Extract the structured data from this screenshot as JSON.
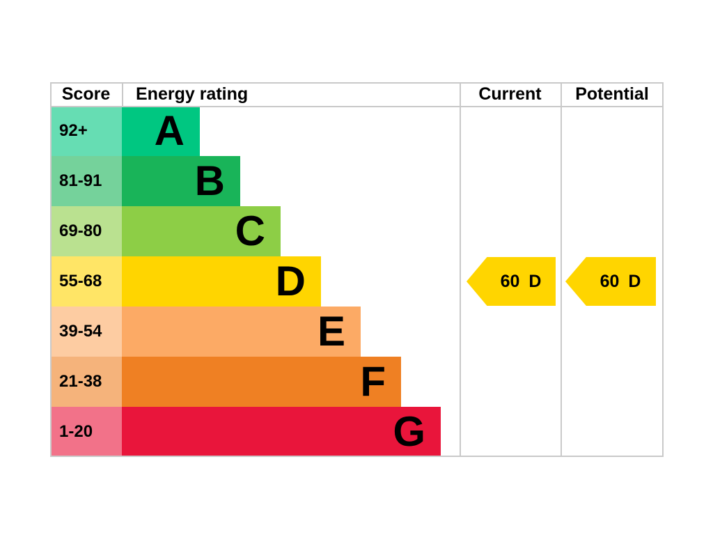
{
  "header": {
    "score": "Score",
    "energy_rating": "Energy rating",
    "current": "Current",
    "potential": "Potential"
  },
  "bands": [
    {
      "letter": "A",
      "score_range": "92+",
      "color": "#00c781",
      "tint": "#66ddb3"
    },
    {
      "letter": "B",
      "score_range": "81-91",
      "color": "#19b459",
      "tint": "#75d29b"
    },
    {
      "letter": "C",
      "score_range": "69-80",
      "color": "#8dce46",
      "tint": "#bae190"
    },
    {
      "letter": "D",
      "score_range": "55-68",
      "color": "#ffd500",
      "tint": "#ffe566"
    },
    {
      "letter": "E",
      "score_range": "39-54",
      "color": "#fcaa65",
      "tint": "#fdcca2"
    },
    {
      "letter": "F",
      "score_range": "21-38",
      "color": "#ef8023",
      "tint": "#f5b37b"
    },
    {
      "letter": "G",
      "score_range": "1-20",
      "color": "#e9153b",
      "tint": "#f27289"
    }
  ],
  "current": {
    "score": "60",
    "band": "D",
    "band_index": 3,
    "arrow_color": "#ffd500"
  },
  "potential": {
    "score": "60",
    "band": "D",
    "band_index": 3,
    "arrow_color": "#ffd500"
  },
  "chart_data": {
    "type": "bar",
    "title": "Energy rating",
    "columns": [
      "Score",
      "Energy rating",
      "Current",
      "Potential"
    ],
    "categories": [
      "A",
      "B",
      "C",
      "D",
      "E",
      "F",
      "G"
    ],
    "score_ranges": [
      "92+",
      "81-91",
      "69-80",
      "55-68",
      "39-54",
      "21-38",
      "1-20"
    ],
    "band_colors": [
      "#00c781",
      "#19b459",
      "#8dce46",
      "#ffd500",
      "#fcaa65",
      "#ef8023",
      "#e9153b"
    ],
    "bar_relative_lengths": [
      1,
      2,
      3,
      4,
      5,
      6,
      7
    ],
    "current": {
      "score": 60,
      "band": "D"
    },
    "potential": {
      "score": 60,
      "band": "D"
    },
    "legend_position": "none",
    "grid": false
  }
}
